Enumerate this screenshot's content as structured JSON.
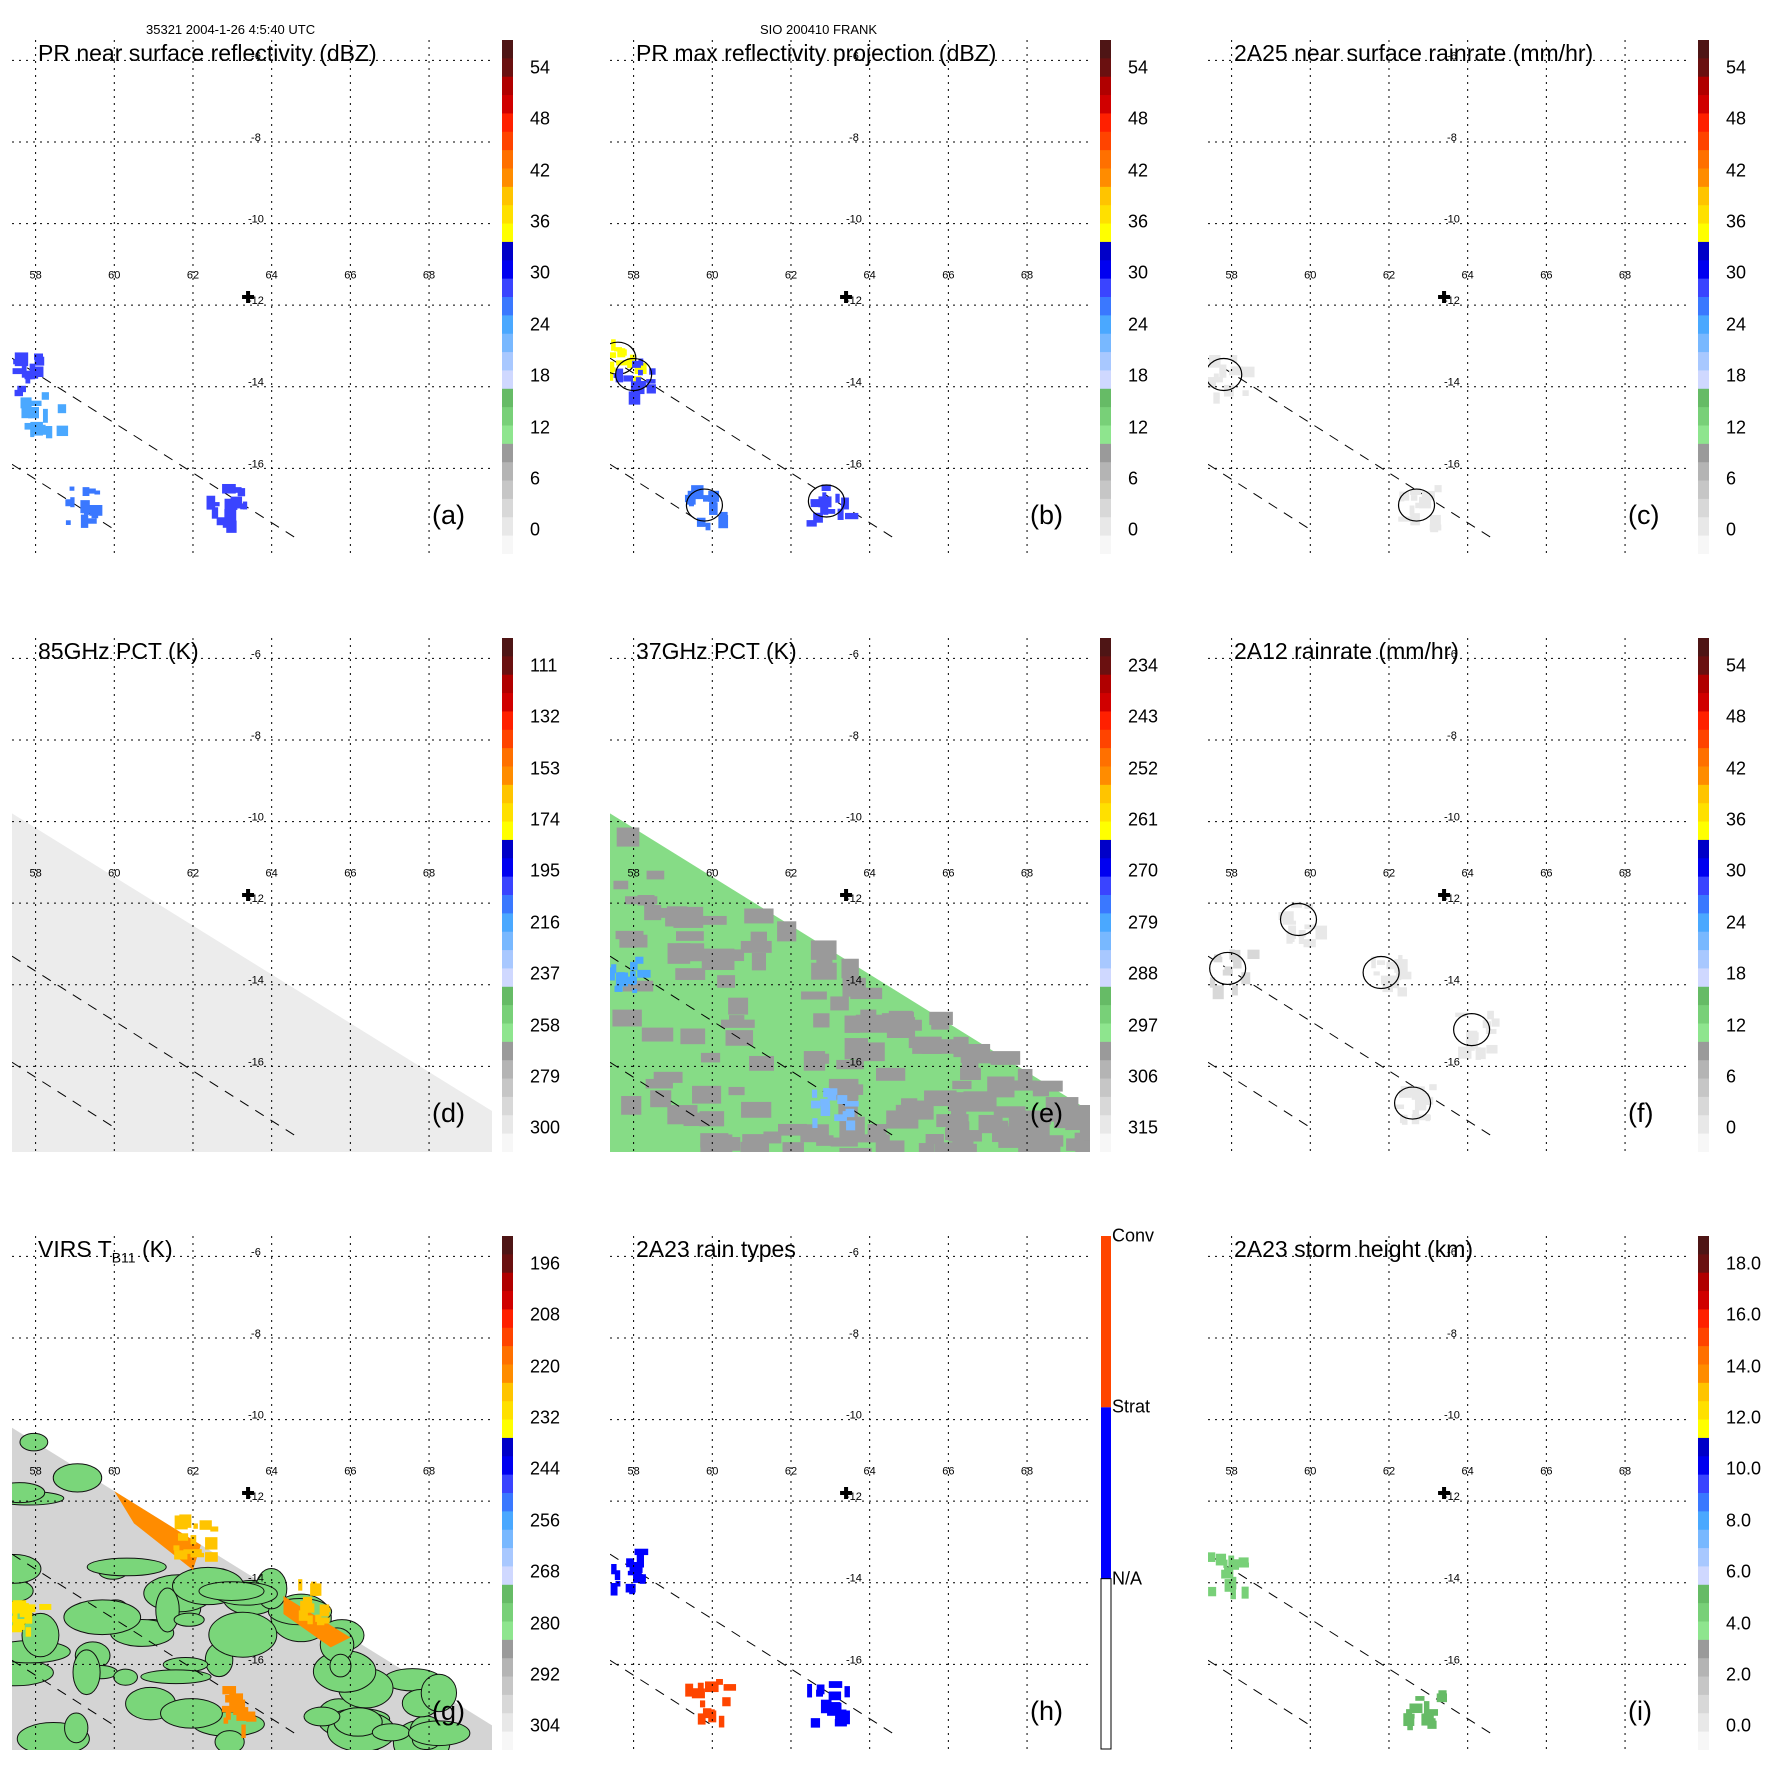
{
  "header": {
    "orbit_time": "35321 2004-1-26 4:5:40 UTC",
    "storm": "SIO 200410 FRANK"
  },
  "common_axes": {
    "lon_ticks": [
      "58",
      "60",
      "62",
      "64",
      "66",
      "68"
    ],
    "lat_ticks": [
      "-6",
      "-8",
      "-10",
      "-12",
      "-14",
      "-16"
    ],
    "lon_range": [
      57.4,
      69.6
    ],
    "lat_range": [
      -5.5,
      -18.1
    ],
    "grid": "dotted",
    "storm_center": {
      "lon": 63.4,
      "lat": -11.8,
      "marker": "plus"
    }
  },
  "colors": {
    "scale": [
      "#f7f7f7",
      "#e8e8e8",
      "#d8d8d8",
      "#c6c6c6",
      "#b4b4b4",
      "#9a9a9a",
      "#8ee58e",
      "#78d078",
      "#66bb66",
      "#cfd8ff",
      "#a8c8ff",
      "#78b8ff",
      "#4aa8ff",
      "#3a78ff",
      "#3a44ff",
      "#0000f0",
      "#0000c8",
      "#ffff00",
      "#ffe000",
      "#ffc400",
      "#ff8c00",
      "#ff7000",
      "#ff4400",
      "#ff2000",
      "#d00000",
      "#b00000",
      "#6a1010",
      "#4e1515"
    ],
    "rain_types": {
      "na": "#ffffff",
      "strat": "#0000ff",
      "conv": "#ff4500"
    }
  },
  "chart_data": [
    {
      "id": "a",
      "type": "heatmap",
      "title": "PR near surface reflectivity (dBZ)",
      "panel_label": "(a)",
      "colorbar_ticks": [
        "54",
        "48",
        "42",
        "36",
        "30",
        "24",
        "18",
        "12",
        "6",
        "0"
      ],
      "colorbar_range": [
        0,
        60
      ],
      "swath": "narrow-pr",
      "features": [
        {
          "lon": 57.8,
          "lat": -13.6,
          "value": 30
        },
        {
          "lon": 58.1,
          "lat": -14.6,
          "value": 26
        },
        {
          "lon": 59.2,
          "lat": -16.9,
          "value": 28
        },
        {
          "lon": 62.8,
          "lat": -16.8,
          "value": 32
        }
      ]
    },
    {
      "id": "b",
      "type": "heatmap",
      "title": "PR max reflectivity projection (dBZ)",
      "panel_label": "(b)",
      "colorbar_ticks": [
        "54",
        "48",
        "42",
        "36",
        "30",
        "24",
        "18",
        "12",
        "6",
        "0"
      ],
      "colorbar_range": [
        0,
        60
      ],
      "swath": "narrow-pr",
      "features": [
        {
          "lon": 57.6,
          "lat": -13.3,
          "value": 38
        },
        {
          "lon": 58.0,
          "lat": -13.7,
          "value": 30
        },
        {
          "lon": 59.8,
          "lat": -16.9,
          "value": 28
        },
        {
          "lon": 62.9,
          "lat": -16.8,
          "value": 30
        }
      ]
    },
    {
      "id": "c",
      "type": "heatmap",
      "title": "2A25 near surface rainrate (mm/hr)",
      "panel_label": "(c)",
      "colorbar_ticks": [
        "54",
        "48",
        "42",
        "36",
        "30",
        "24",
        "18",
        "12",
        "6",
        "0"
      ],
      "colorbar_range": [
        0,
        60
      ],
      "swath": "narrow-pr",
      "features": [
        {
          "lon": 57.8,
          "lat": -13.7,
          "value": 4
        },
        {
          "lon": 62.7,
          "lat": -16.9,
          "value": 3
        }
      ]
    },
    {
      "id": "d",
      "type": "heatmap",
      "title": "85GHz PCT (K)",
      "panel_label": "(d)",
      "colorbar_ticks": [
        "111",
        "132",
        "153",
        "174",
        "195",
        "216",
        "237",
        "258",
        "279",
        "300"
      ],
      "colorbar_range": [
        300,
        90
      ],
      "swath": "wide-tmi",
      "fill": "light-gray",
      "features": []
    },
    {
      "id": "e",
      "type": "heatmap",
      "title": "37GHz PCT (K)",
      "panel_label": "(e)",
      "colorbar_ticks": [
        "234",
        "243",
        "252",
        "261",
        "270",
        "279",
        "288",
        "297",
        "306",
        "315"
      ],
      "colorbar_range": [
        315,
        225
      ],
      "swath": "wide-tmi",
      "fill": "green-gray",
      "features": [
        {
          "lon": 57.6,
          "lat": -13.8,
          "value": 276
        },
        {
          "lon": 62.9,
          "lat": -16.9,
          "value": 278
        }
      ]
    },
    {
      "id": "f",
      "type": "heatmap",
      "title": "2A12 rainrate (mm/hr)",
      "panel_label": "(f)",
      "colorbar_ticks": [
        "54",
        "48",
        "42",
        "36",
        "30",
        "24",
        "18",
        "12",
        "6",
        "0"
      ],
      "colorbar_range": [
        0,
        60
      ],
      "swath": "wide-tmi",
      "features": [
        {
          "lon": 57.9,
          "lat": -13.6,
          "value": 5
        },
        {
          "lon": 61.8,
          "lat": -13.7,
          "value": 4
        },
        {
          "lon": 62.6,
          "lat": -16.9,
          "value": 4
        },
        {
          "lon": 64.1,
          "lat": -15.1,
          "value": 3
        },
        {
          "lon": 59.7,
          "lat": -12.4,
          "value": 3
        }
      ]
    },
    {
      "id": "g",
      "type": "heatmap",
      "title": "VIRS T",
      "title_sub": "B11",
      "title_unit": " (K)",
      "panel_label": "(g)",
      "colorbar_ticks": [
        "196",
        "208",
        "220",
        "232",
        "244",
        "256",
        "268",
        "280",
        "292",
        "304"
      ],
      "colorbar_range": [
        304,
        184
      ],
      "swath": "wide-virs",
      "fill": "cloud-gray",
      "features": [
        {
          "lon": 62.9,
          "lat": -17.0,
          "value": 215
        },
        {
          "lon": 62.0,
          "lat": -12.8,
          "value": 220
        },
        {
          "lon": 65.0,
          "lat": -14.4,
          "value": 222
        },
        {
          "lon": 57.6,
          "lat": -14.6,
          "value": 225
        }
      ]
    },
    {
      "id": "h",
      "type": "heatmap",
      "title": "2A23 rain types",
      "panel_label": "(h)",
      "colorbar_labels": [
        "Conv",
        "Strat",
        "N/A"
      ],
      "swath": "narrow-pr",
      "features": [
        {
          "lon": 57.8,
          "lat": -13.6,
          "value": "Strat"
        },
        {
          "lon": 62.9,
          "lat": -16.9,
          "value": "Strat"
        },
        {
          "lon": 59.8,
          "lat": -16.8,
          "value": "Conv"
        }
      ]
    },
    {
      "id": "i",
      "type": "heatmap",
      "title": "2A23 storm height (km)",
      "panel_label": "(i)",
      "colorbar_ticks": [
        "18.0",
        "16.0",
        "14.0",
        "12.0",
        "10.0",
        "8.0",
        "6.0",
        "4.0",
        "2.0",
        "0.0"
      ],
      "colorbar_range": [
        0,
        20
      ],
      "swath": "narrow-pr",
      "features": [
        {
          "lon": 57.8,
          "lat": -13.7,
          "value": 5.5
        },
        {
          "lon": 62.8,
          "lat": -16.9,
          "value": 6.0
        }
      ]
    }
  ]
}
